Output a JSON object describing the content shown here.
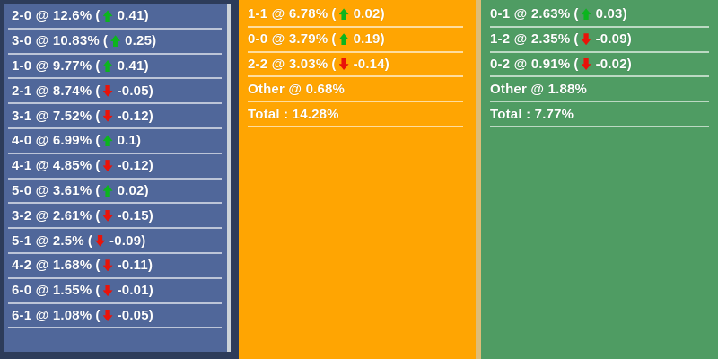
{
  "labels": {
    "at": "@",
    "total": "Total :",
    "open_paren": "(",
    "close_paren": ")"
  },
  "icons": {
    "up": "up-arrow-icon",
    "down": "down-arrow-icon"
  },
  "colors": {
    "home_bg": "#50679a",
    "home_edge": "#ccd3d9",
    "draw_bg": "#ffa502",
    "away_bg": "#4f9c63",
    "navy": "#2d3c5a",
    "tan": "#debc77",
    "up": "#0cb51e",
    "down": "#ea1309",
    "divider": "rgba(255,255,255,0.62)",
    "text": "#ffffff"
  },
  "columns": [
    {
      "name": "home",
      "rows": [
        {
          "score": "2-0",
          "pct": "12.6%",
          "dir": "up",
          "chg": "0.41"
        },
        {
          "score": "3-0",
          "pct": "10.83%",
          "dir": "up",
          "chg": "0.25"
        },
        {
          "score": "1-0",
          "pct": "9.77%",
          "dir": "up",
          "chg": "0.41"
        },
        {
          "score": "2-1",
          "pct": "8.74%",
          "dir": "down",
          "chg": "-0.05"
        },
        {
          "score": "3-1",
          "pct": "7.52%",
          "dir": "down",
          "chg": "-0.12"
        },
        {
          "score": "4-0",
          "pct": "6.99%",
          "dir": "up",
          "chg": "0.1"
        },
        {
          "score": "4-1",
          "pct": "4.85%",
          "dir": "down",
          "chg": "-0.12"
        },
        {
          "score": "5-0",
          "pct": "3.61%",
          "dir": "up",
          "chg": "0.02"
        },
        {
          "score": "3-2",
          "pct": "2.61%",
          "dir": "down",
          "chg": "-0.15"
        },
        {
          "score": "5-1",
          "pct": "2.5%",
          "dir": "down",
          "chg": "-0.09"
        },
        {
          "score": "4-2",
          "pct": "1.68%",
          "dir": "down",
          "chg": "-0.11"
        },
        {
          "score": "6-0",
          "pct": "1.55%",
          "dir": "down",
          "chg": "-0.01"
        },
        {
          "score": "6-1",
          "pct": "1.08%",
          "dir": "down",
          "chg": "-0.05"
        }
      ]
    },
    {
      "name": "draw",
      "rows": [
        {
          "score": "1-1",
          "pct": "6.78%",
          "dir": "up",
          "chg": "0.02"
        },
        {
          "score": "0-0",
          "pct": "3.79%",
          "dir": "up",
          "chg": "0.19"
        },
        {
          "score": "2-2",
          "pct": "3.03%",
          "dir": "down",
          "chg": "-0.14"
        },
        {
          "score": "Other",
          "pct": "0.68%"
        }
      ],
      "total": "14.28%"
    },
    {
      "name": "away",
      "rows": [
        {
          "score": "0-1",
          "pct": "2.63%",
          "dir": "up",
          "chg": "0.03"
        },
        {
          "score": "1-2",
          "pct": "2.35%",
          "dir": "down",
          "chg": "-0.09"
        },
        {
          "score": "0-2",
          "pct": "0.91%",
          "dir": "down",
          "chg": "-0.02"
        },
        {
          "score": "Other",
          "pct": "1.88%"
        }
      ],
      "total": "7.77%"
    }
  ]
}
